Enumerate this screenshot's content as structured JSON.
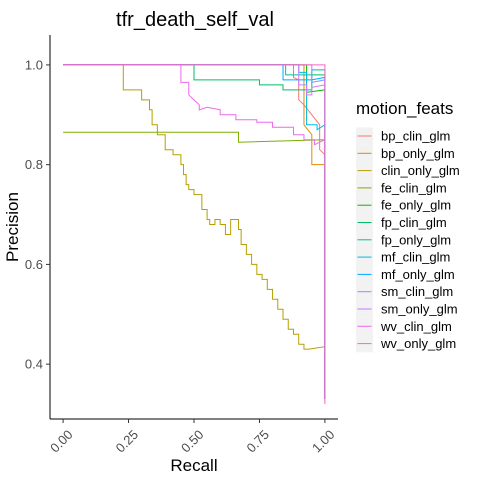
{
  "chart_data": {
    "type": "line",
    "title": "tfr_death_self_val",
    "xlabel": "Recall",
    "ylabel": "Precision",
    "xlim": [
      -0.05,
      1.05
    ],
    "ylim": [
      0.29,
      1.06
    ],
    "x_ticks": [
      0.0,
      0.25,
      0.5,
      0.75,
      1.0
    ],
    "x_tick_labels": [
      "0.00",
      "0.25",
      "0.50",
      "0.75",
      "1.00"
    ],
    "y_ticks": [
      0.4,
      0.6,
      0.8,
      1.0
    ],
    "y_tick_labels": [
      "0.4",
      "0.6",
      "0.8",
      "1.0"
    ],
    "grid": false,
    "legend": {
      "title": "motion_feats",
      "placement": "right"
    },
    "series": [
      {
        "name": "bp_clin_glm",
        "color": "#F8766D",
        "points": [
          [
            0.0,
            1.0
          ],
          [
            0.88,
            1.0
          ],
          [
            0.88,
            0.975
          ],
          [
            0.9,
            0.97
          ],
          [
            0.9,
            0.93
          ],
          [
            0.92,
            0.92
          ],
          [
            0.95,
            0.9
          ],
          [
            0.98,
            0.88
          ],
          [
            0.98,
            0.83
          ],
          [
            1.0,
            0.82
          ],
          [
            1.0,
            0.33
          ]
        ]
      },
      {
        "name": "bp_only_glm",
        "color": "#DE8C00",
        "points": [
          [
            0.0,
            1.0
          ],
          [
            0.92,
            1.0
          ],
          [
            0.92,
            0.88
          ],
          [
            0.95,
            0.86
          ],
          [
            0.95,
            0.8
          ],
          [
            0.97,
            0.8
          ],
          [
            1.0,
            0.8
          ],
          [
            1.0,
            0.33
          ]
        ]
      },
      {
        "name": "clin_only_glm",
        "color": "#B79F00",
        "points": [
          [
            0.0,
            1.0
          ],
          [
            0.23,
            1.0
          ],
          [
            0.23,
            0.95
          ],
          [
            0.3,
            0.95
          ],
          [
            0.3,
            0.93
          ],
          [
            0.33,
            0.93
          ],
          [
            0.33,
            0.91
          ],
          [
            0.34,
            0.91
          ],
          [
            0.34,
            0.88
          ],
          [
            0.36,
            0.88
          ],
          [
            0.36,
            0.86
          ],
          [
            0.39,
            0.86
          ],
          [
            0.39,
            0.83
          ],
          [
            0.42,
            0.83
          ],
          [
            0.42,
            0.82
          ],
          [
            0.45,
            0.82
          ],
          [
            0.45,
            0.8
          ],
          [
            0.46,
            0.8
          ],
          [
            0.46,
            0.78
          ],
          [
            0.47,
            0.78
          ],
          [
            0.47,
            0.76
          ],
          [
            0.48,
            0.76
          ],
          [
            0.48,
            0.75
          ],
          [
            0.5,
            0.75
          ],
          [
            0.5,
            0.74
          ],
          [
            0.53,
            0.74
          ],
          [
            0.53,
            0.71
          ],
          [
            0.55,
            0.71
          ],
          [
            0.55,
            0.69
          ],
          [
            0.56,
            0.69
          ],
          [
            0.56,
            0.68
          ],
          [
            0.58,
            0.68
          ],
          [
            0.58,
            0.69
          ],
          [
            0.6,
            0.69
          ],
          [
            0.6,
            0.68
          ],
          [
            0.62,
            0.68
          ],
          [
            0.62,
            0.66
          ],
          [
            0.64,
            0.66
          ],
          [
            0.64,
            0.69
          ],
          [
            0.67,
            0.69
          ],
          [
            0.67,
            0.67
          ],
          [
            0.68,
            0.67
          ],
          [
            0.68,
            0.64
          ],
          [
            0.7,
            0.64
          ],
          [
            0.7,
            0.62
          ],
          [
            0.72,
            0.62
          ],
          [
            0.72,
            0.6
          ],
          [
            0.74,
            0.6
          ],
          [
            0.74,
            0.58
          ],
          [
            0.76,
            0.58
          ],
          [
            0.76,
            0.57
          ],
          [
            0.78,
            0.57
          ],
          [
            0.78,
            0.55
          ],
          [
            0.8,
            0.55
          ],
          [
            0.8,
            0.53
          ],
          [
            0.82,
            0.53
          ],
          [
            0.82,
            0.51
          ],
          [
            0.84,
            0.51
          ],
          [
            0.84,
            0.49
          ],
          [
            0.86,
            0.49
          ],
          [
            0.86,
            0.47
          ],
          [
            0.88,
            0.47
          ],
          [
            0.88,
            0.46
          ],
          [
            0.9,
            0.46
          ],
          [
            0.9,
            0.44
          ],
          [
            0.92,
            0.44
          ],
          [
            0.92,
            0.43
          ],
          [
            0.94,
            0.43
          ],
          [
            1.0,
            0.435
          ],
          [
            1.0,
            0.33
          ]
        ]
      },
      {
        "name": "fe_clin_glm",
        "color": "#7CAE00",
        "points": [
          [
            0.0,
            0.865
          ],
          [
            0.67,
            0.865
          ],
          [
            0.67,
            0.845
          ],
          [
            1.0,
            0.85
          ],
          [
            1.0,
            0.33
          ]
        ]
      },
      {
        "name": "fe_only_glm",
        "color": "#0CB702",
        "points": [
          [
            0.0,
            1.0
          ],
          [
            0.93,
            1.0
          ],
          [
            0.93,
            0.945
          ],
          [
            1.0,
            0.95
          ],
          [
            1.0,
            0.33
          ]
        ]
      },
      {
        "name": "fp_clin_glm",
        "color": "#00BE67",
        "points": [
          [
            0.0,
            1.0
          ],
          [
            0.5,
            1.0
          ],
          [
            0.5,
            0.97
          ],
          [
            0.75,
            0.97
          ],
          [
            0.75,
            0.96
          ],
          [
            0.84,
            0.96
          ],
          [
            0.84,
            0.95
          ],
          [
            0.95,
            0.95
          ],
          [
            0.95,
            0.98
          ],
          [
            1.0,
            0.98
          ],
          [
            1.0,
            0.33
          ]
        ]
      },
      {
        "name": "fp_only_glm",
        "color": "#00C19A",
        "points": [
          [
            0.0,
            1.0
          ],
          [
            0.85,
            1.0
          ],
          [
            0.85,
            0.98
          ],
          [
            0.95,
            0.98
          ],
          [
            0.95,
            0.99
          ],
          [
            1.0,
            0.99
          ],
          [
            1.0,
            0.33
          ]
        ]
      },
      {
        "name": "mf_clin_glm",
        "color": "#00B8E7",
        "points": [
          [
            0.0,
            1.0
          ],
          [
            0.9,
            1.0
          ],
          [
            0.9,
            0.985
          ],
          [
            0.93,
            0.985
          ],
          [
            0.93,
            0.88
          ],
          [
            0.97,
            0.88
          ],
          [
            0.97,
            0.87
          ],
          [
            1.0,
            0.88
          ],
          [
            1.0,
            0.33
          ]
        ]
      },
      {
        "name": "mf_only_glm",
        "color": "#00A9FF",
        "points": [
          [
            0.0,
            1.0
          ],
          [
            0.84,
            1.0
          ],
          [
            0.84,
            0.97
          ],
          [
            0.95,
            0.97
          ],
          [
            1.0,
            0.975
          ],
          [
            1.0,
            0.33
          ]
        ]
      },
      {
        "name": "sm_clin_glm",
        "color": "#8494FF",
        "points": [
          [
            0.0,
            1.0
          ],
          [
            0.95,
            1.0
          ],
          [
            0.95,
            0.965
          ],
          [
            1.0,
            0.97
          ],
          [
            1.0,
            0.33
          ]
        ]
      },
      {
        "name": "sm_only_glm",
        "color": "#C77CFF",
        "points": [
          [
            0.0,
            1.0
          ],
          [
            0.9,
            1.0
          ],
          [
            0.9,
            0.96
          ],
          [
            0.93,
            0.96
          ],
          [
            0.93,
            0.94
          ],
          [
            0.95,
            0.94
          ],
          [
            0.95,
            0.955
          ],
          [
            1.0,
            0.96
          ],
          [
            1.0,
            0.33
          ]
        ]
      },
      {
        "name": "wv_clin_glm",
        "color": "#ED68ED",
        "points": [
          [
            0.0,
            1.0
          ],
          [
            0.45,
            1.0
          ],
          [
            0.45,
            0.965
          ],
          [
            0.48,
            0.965
          ],
          [
            0.48,
            0.94
          ],
          [
            0.5,
            0.93
          ],
          [
            0.52,
            0.92
          ],
          [
            0.52,
            0.91
          ],
          [
            0.55,
            0.915
          ],
          [
            0.6,
            0.91
          ],
          [
            0.6,
            0.9
          ],
          [
            0.66,
            0.9
          ],
          [
            0.66,
            0.89
          ],
          [
            0.74,
            0.89
          ],
          [
            0.74,
            0.885
          ],
          [
            0.8,
            0.885
          ],
          [
            0.8,
            0.875
          ],
          [
            0.88,
            0.875
          ],
          [
            0.88,
            0.86
          ],
          [
            0.92,
            0.86
          ],
          [
            0.92,
            0.85
          ],
          [
            0.96,
            0.85
          ],
          [
            0.96,
            0.84
          ],
          [
            1.0,
            0.85
          ],
          [
            1.0,
            0.33
          ]
        ]
      },
      {
        "name": "wv_only_glm",
        "color": "#FF61C3",
        "points": [
          [
            0.0,
            1.0
          ],
          [
            1.0,
            1.0
          ],
          [
            1.0,
            0.32
          ]
        ]
      }
    ]
  }
}
